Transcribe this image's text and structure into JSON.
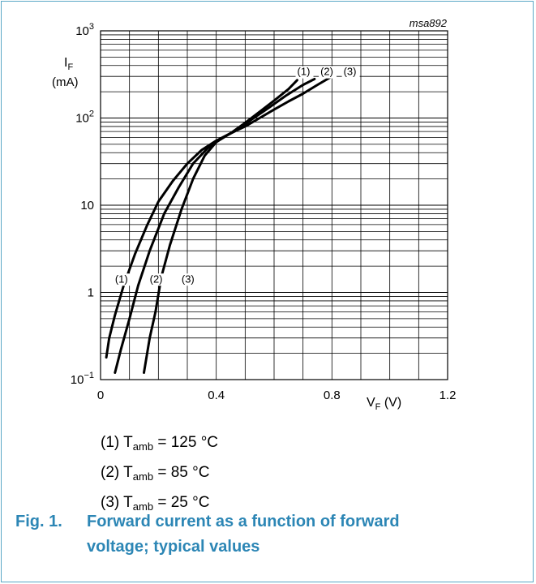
{
  "chart_data": {
    "type": "line",
    "id_label": "msa892",
    "xlabel": {
      "main": "V",
      "sub": "F",
      "unit": "(V)"
    },
    "ylabel": {
      "main": "I",
      "sub": "F",
      "unit": "(mA)"
    },
    "x_scale": "linear",
    "y_scale": "log",
    "xlim": [
      0,
      1.2
    ],
    "ylim": [
      0.1,
      1000
    ],
    "x_ticks": [
      {
        "value": 0,
        "label": "0"
      },
      {
        "value": 0.4,
        "label": "0.4"
      },
      {
        "value": 0.8,
        "label": "0.8"
      },
      {
        "value": 1.2,
        "label": "1.2"
      }
    ],
    "y_ticks": [
      {
        "value": 1000,
        "base": "10",
        "exp": "3"
      },
      {
        "value": 100,
        "base": "10",
        "exp": "2"
      },
      {
        "value": 10,
        "base": "10",
        "exp": ""
      },
      {
        "value": 1,
        "base": "1",
        "exp": ""
      },
      {
        "value": 0.1,
        "base": "10",
        "exp": "−1"
      }
    ],
    "grid": true,
    "series": [
      {
        "name": "(1)",
        "color": "#000000",
        "points": [
          [
            0.02,
            0.18
          ],
          [
            0.03,
            0.3
          ],
          [
            0.05,
            0.55
          ],
          [
            0.08,
            1.2
          ],
          [
            0.12,
            2.8
          ],
          [
            0.16,
            5.8
          ],
          [
            0.2,
            11
          ],
          [
            0.25,
            19
          ],
          [
            0.3,
            30
          ],
          [
            0.35,
            43
          ],
          [
            0.4,
            55
          ],
          [
            0.45,
            67
          ],
          [
            0.5,
            88
          ],
          [
            0.55,
            118
          ],
          [
            0.6,
            158
          ],
          [
            0.65,
            215
          ],
          [
            0.68,
            272
          ]
        ],
        "bottom_label_pos": [
          0.05,
          1.3
        ],
        "top_label_pos": [
          0.68,
          310
        ]
      },
      {
        "name": "(2)",
        "color": "#000000",
        "points": [
          [
            0.05,
            0.12
          ],
          [
            0.07,
            0.22
          ],
          [
            0.1,
            0.5
          ],
          [
            0.13,
            1.2
          ],
          [
            0.17,
            3
          ],
          [
            0.22,
            8
          ],
          [
            0.27,
            16
          ],
          [
            0.32,
            30
          ],
          [
            0.37,
            45
          ],
          [
            0.42,
            59
          ],
          [
            0.47,
            72
          ],
          [
            0.52,
            95
          ],
          [
            0.58,
            130
          ],
          [
            0.64,
            180
          ],
          [
            0.7,
            240
          ],
          [
            0.74,
            280
          ]
        ],
        "bottom_label_pos": [
          0.17,
          1.3
        ],
        "top_label_pos": [
          0.76,
          310
        ]
      },
      {
        "name": "(3)",
        "color": "#000000",
        "points": [
          [
            0.15,
            0.12
          ],
          [
            0.17,
            0.3
          ],
          [
            0.19,
            0.6
          ],
          [
            0.21,
            1.5
          ],
          [
            0.24,
            3.5
          ],
          [
            0.28,
            9
          ],
          [
            0.32,
            20
          ],
          [
            0.36,
            37
          ],
          [
            0.4,
            53
          ],
          [
            0.45,
            67
          ],
          [
            0.5,
            80
          ],
          [
            0.55,
            100
          ],
          [
            0.6,
            125
          ],
          [
            0.65,
            155
          ],
          [
            0.7,
            190
          ],
          [
            0.75,
            240
          ],
          [
            0.8,
            300
          ]
        ],
        "bottom_label_pos": [
          0.28,
          1.3
        ],
        "top_label_pos": [
          0.84,
          310
        ]
      }
    ]
  },
  "legend": [
    {
      "prefix": "(1) T",
      "sub": "amb",
      "suffix": " = 125 °C"
    },
    {
      "prefix": "(2) T",
      "sub": "amb",
      "suffix": " = 85 °C"
    },
    {
      "prefix": "(3) T",
      "sub": "amb",
      "suffix": " = 25 °C"
    }
  ],
  "caption": {
    "number": "Fig. 1.",
    "text": "Forward current as a function of forward voltage; typical values"
  }
}
